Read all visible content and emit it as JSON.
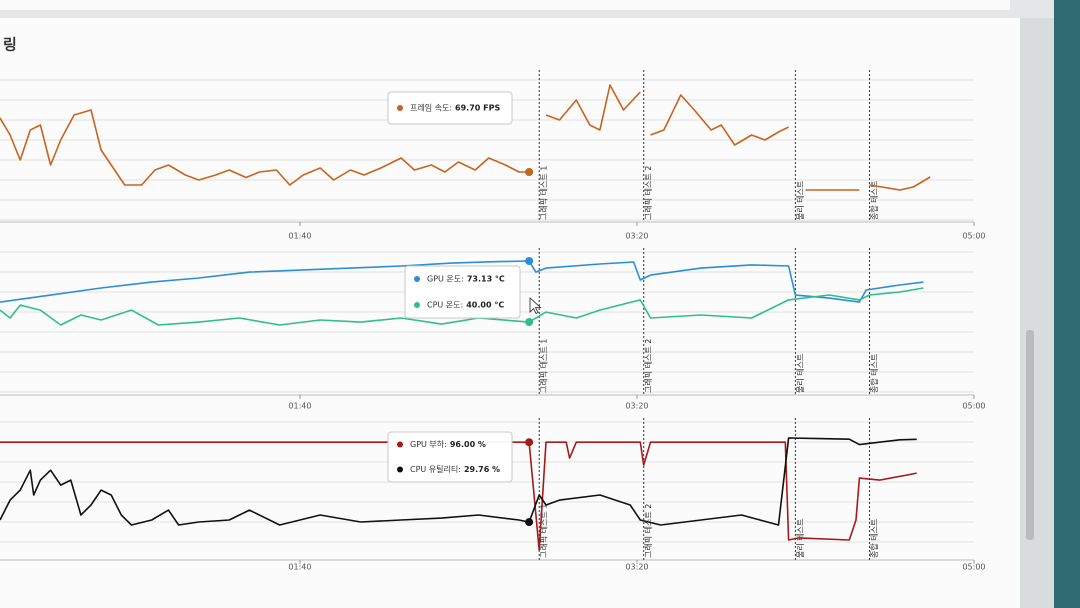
{
  "page_title": "링",
  "chart_data": [
    {
      "type": "line",
      "xlim": [
        11,
        300
      ],
      "xticks": [
        {
          "value": 100,
          "label": "01:40"
        },
        {
          "value": 200,
          "label": "03:20"
        },
        {
          "value": 300,
          "label": "05:00"
        }
      ],
      "events": [
        {
          "x": 171,
          "label": "그래픽 테스트 1"
        },
        {
          "x": 202,
          "label": "그래픽 테스트 2"
        },
        {
          "x": 247,
          "label": "물리 테스트"
        },
        {
          "x": 269,
          "label": "종합 테스트"
        }
      ],
      "series": [
        {
          "color": "#c8641e",
          "x": [
            11,
            14,
            17,
            20,
            23,
            26,
            29,
            33,
            38,
            41,
            45,
            48,
            53,
            57,
            61,
            66,
            70,
            75,
            79,
            84,
            88,
            93,
            97,
            101,
            106,
            110,
            115,
            119,
            124,
            130,
            134,
            139,
            143,
            147,
            152,
            156,
            161,
            165,
            168,
            170,
            173,
            177,
            182,
            186,
            189,
            192,
            196,
            201,
            202,
            204,
            208,
            213,
            217,
            222,
            225,
            229,
            234,
            238,
            242,
            245,
            247,
            250,
            257,
            266,
            267,
            269,
            278,
            282,
            287
          ],
          "values": [
            91.3,
            84.5,
            74.5,
            86.5,
            88.5,
            72.5,
            82.5,
            92.5,
            94.5,
            78.5,
            70.5,
            64.5,
            64.5,
            70.5,
            72.5,
            68.5,
            66.5,
            68.5,
            70.5,
            67.5,
            69.7,
            70.5,
            64.5,
            68.5,
            71.3,
            66.5,
            70.5,
            68.5,
            71.3,
            75.3,
            70.5,
            72.5,
            69.7,
            73.7,
            70.5,
            75.3,
            72.5,
            69.7,
            69.7,
            null,
            92.5,
            90.5,
            98.5,
            88.5,
            86.5,
            104.5,
            94.5,
            101.7,
            null,
            84.5,
            86.5,
            100.5,
            94.5,
            86.5,
            88.5,
            80.5,
            84.5,
            82.5,
            85.7,
            87.7,
            null,
            62.5,
            62.5,
            62.5,
            null,
            64.5,
            62.5,
            63.7,
            67.7
          ]
        }
      ],
      "tooltip": {
        "x": 168,
        "items": [
          {
            "label": "프레임 속도:",
            "value": 69.7,
            "value_label": "69.70 FPS"
          }
        ]
      }
    },
    {
      "type": "line",
      "xlim": [
        11,
        300
      ],
      "xticks": [
        {
          "value": 100,
          "label": "01:40"
        },
        {
          "value": 200,
          "label": "03:20"
        },
        {
          "value": 300,
          "label": "05:00"
        }
      ],
      "events": [
        {
          "x": 171,
          "label": "그래픽 테스트 1"
        },
        {
          "x": 202,
          "label": "그래픽 테스트 2"
        },
        {
          "x": 247,
          "label": "물리 테스트"
        },
        {
          "x": 269,
          "label": "종합 테스트"
        }
      ],
      "series": [
        {
          "color": "#2b8fd6",
          "x": [
            11,
            26,
            41,
            56,
            70,
            85,
            100,
            115,
            130,
            145,
            159,
            168,
            170,
            173,
            189,
            199,
            201,
            204,
            219,
            234,
            245,
            247,
            257,
            266,
            268,
            278,
            285
          ],
          "values": [
            50.8,
            54.6,
            58.5,
            61.7,
            63.9,
            67.1,
            68.2,
            69.3,
            70.4,
            72.0,
            72.8,
            73.13,
            67.1,
            69.3,
            71.5,
            72.6,
            62.8,
            65.5,
            69.3,
            71.0,
            70.4,
            54.6,
            53.0,
            50.8,
            57.4,
            60.1,
            61.7
          ]
        },
        {
          "color": "#2fbf8c",
          "x": [
            11,
            14,
            17,
            23,
            29,
            35,
            41,
            50,
            58,
            70,
            82,
            94,
            106,
            118,
            130,
            142,
            153,
            168,
            173,
            182,
            189,
            201,
            204,
            219,
            234,
            245,
            257,
            266,
            269,
            278,
            285
          ],
          "values": [
            46.5,
            42.2,
            49.2,
            46.5,
            38.4,
            43.8,
            41.1,
            46.5,
            38.4,
            40.0,
            42.2,
            38.4,
            41.1,
            40.0,
            42.2,
            38.9,
            42.2,
            40.0,
            45.4,
            42.2,
            46.5,
            52.0,
            42.2,
            43.8,
            42.2,
            52.0,
            54.7,
            52.0,
            54.7,
            56.3,
            58.5
          ]
        }
      ],
      "tooltip": {
        "x": 168,
        "items": [
          {
            "label": "GPU 온도:",
            "value": 73.13,
            "value_label": "73.13 °C"
          },
          {
            "label": "CPU 온도:",
            "value": 40,
            "value_label": "40.00 °C"
          }
        ]
      }
    },
    {
      "type": "line",
      "xlim": [
        11,
        300
      ],
      "xticks": [
        {
          "value": 100,
          "label": "01:40"
        },
        {
          "value": 200,
          "label": "03:20"
        },
        {
          "value": 300,
          "label": "05:00"
        }
      ],
      "events": [
        {
          "x": 171,
          "label": "그래픽 테스트 1"
        },
        {
          "x": 202,
          "label": "그래픽 테스트 2"
        },
        {
          "x": 247,
          "label": "물리 테스트"
        },
        {
          "x": 269,
          "label": "종합 테스트"
        }
      ],
      "series": [
        {
          "color": "#a31b1b",
          "x": [
            11,
            41,
            70,
            100,
            130,
            159,
            168,
            171,
            173,
            179,
            180,
            182,
            201,
            202,
            204,
            219,
            244,
            245,
            248,
            263,
            265,
            266,
            272,
            280,
            283
          ],
          "values": [
            96,
            96,
            96,
            96,
            96,
            96,
            96,
            6.6,
            96,
            96,
            82.8,
            96,
            96,
            77,
            96,
            96,
            96,
            14.9,
            16.6,
            14.9,
            31.5,
            66.2,
            64.6,
            68.7,
            70.4
          ]
        },
        {
          "color": "#111111",
          "x": [
            11,
            14,
            17,
            20,
            21,
            23,
            26,
            29,
            32,
            35,
            38,
            41,
            44,
            47,
            50,
            56,
            61,
            64,
            70,
            79,
            85,
            94,
            106,
            118,
            130,
            142,
            153,
            165,
            168,
            171,
            173,
            177,
            189,
            198,
            201,
            207,
            219,
            231,
            242,
            245,
            254,
            263,
            266,
            278,
            283
          ],
          "values": [
            31.5,
            48.0,
            56.3,
            72.8,
            52.2,
            64.6,
            72.8,
            60.4,
            64.6,
            35.6,
            43.9,
            56.3,
            52.2,
            35.6,
            27.3,
            31.5,
            39.7,
            27.3,
            29.8,
            31.5,
            39.7,
            27.3,
            35.6,
            29.8,
            31.5,
            33.1,
            35.6,
            31.5,
            29.76,
            52.2,
            43.9,
            48.0,
            52.2,
            43.9,
            31.5,
            27.3,
            31.5,
            35.6,
            27.3,
            99.5,
            99.0,
            98.5,
            94.0,
            98.0,
            98.4
          ]
        }
      ],
      "tooltip": {
        "x": 168,
        "items": [
          {
            "label": "GPU 부하:",
            "value": 96,
            "value_label": "96.00 %"
          },
          {
            "label": "CPU 유틸리티:",
            "value": 29.76,
            "value_label": "29.76 %"
          }
        ]
      }
    }
  ]
}
